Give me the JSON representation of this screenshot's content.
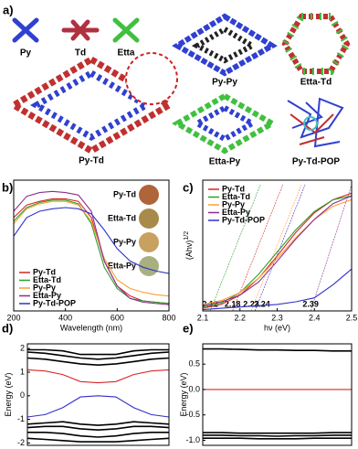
{
  "panel_a": {
    "label": "a)",
    "monomers": [
      "Py",
      "Td",
      "Etta"
    ],
    "frameworks": [
      "Py-Td",
      "Py-Py",
      "Etta-Td",
      "Etta-Py",
      "Py-Td-POP"
    ]
  },
  "chart_data": [
    {
      "type": "line",
      "label": "b)",
      "xlabel": "Wavelength (nm)",
      "xlim": [
        200,
        800
      ],
      "xticks": [
        200,
        400,
        600,
        800
      ],
      "ylim": [
        0,
        1.05
      ],
      "legend": "lower left",
      "x": [
        200,
        250,
        300,
        350,
        400,
        450,
        500,
        550,
        600,
        650,
        700,
        750,
        800
      ],
      "series": [
        {
          "name": "Py-Td",
          "color": "#d62728",
          "values": [
            0.75,
            0.85,
            0.88,
            0.9,
            0.9,
            0.88,
            0.75,
            0.4,
            0.2,
            0.12,
            0.08,
            0.07,
            0.06
          ]
        },
        {
          "name": "Etta-Td",
          "color": "#2ca02c",
          "values": [
            0.72,
            0.83,
            0.87,
            0.89,
            0.89,
            0.86,
            0.7,
            0.35,
            0.18,
            0.1,
            0.08,
            0.07,
            0.06
          ]
        },
        {
          "name": "Py-Py",
          "color": "#ff9f2f",
          "values": [
            0.7,
            0.82,
            0.86,
            0.88,
            0.88,
            0.85,
            0.72,
            0.42,
            0.25,
            0.18,
            0.15,
            0.13,
            0.12
          ]
        },
        {
          "name": "Etta-Py",
          "color": "#8b2f8b",
          "values": [
            0.8,
            0.92,
            0.95,
            0.96,
            0.95,
            0.93,
            0.8,
            0.4,
            0.2,
            0.1,
            0.07,
            0.06,
            0.05
          ]
        },
        {
          "name": "Py-Td-POP",
          "color": "#3030c8",
          "values": [
            0.6,
            0.75,
            0.8,
            0.82,
            0.83,
            0.82,
            0.78,
            0.65,
            0.5,
            0.4,
            0.35,
            0.32,
            0.3
          ]
        }
      ],
      "inset_labels": [
        "Py-Td",
        "Etta-Td",
        "Py-Py",
        "Etta-Py"
      ],
      "inset_colors": [
        "#b0643a",
        "#a88a4a",
        "#c8a060",
        "#a8b080"
      ],
      "inset_label_colors": [
        "#d62728",
        "#2ca02c",
        "#ff9f2f",
        "#8b2f8b"
      ]
    },
    {
      "type": "line",
      "label": "c)",
      "xlabel": "hν (eV)",
      "ylabel": "(Ahν)",
      "ylabel_sup": "1/2",
      "xlim": [
        2.1,
        2.5
      ],
      "xticks": [
        2.1,
        2.2,
        2.3,
        2.4,
        2.5
      ],
      "ylim": [
        0,
        1
      ],
      "legend": "upper left",
      "x": [
        2.1,
        2.15,
        2.2,
        2.25,
        2.3,
        2.35,
        2.4,
        2.45,
        2.5
      ],
      "series": [
        {
          "name": "Py-Td",
          "color": "#d62728",
          "values": [
            0.02,
            0.05,
            0.12,
            0.25,
            0.42,
            0.6,
            0.75,
            0.85,
            0.9
          ]
        },
        {
          "name": "Etta-Td",
          "color": "#2ca02c",
          "values": [
            0.03,
            0.06,
            0.14,
            0.28,
            0.45,
            0.62,
            0.76,
            0.85,
            0.88
          ]
        },
        {
          "name": "Py-Py",
          "color": "#ff9f2f",
          "values": [
            0.05,
            0.08,
            0.14,
            0.25,
            0.4,
            0.56,
            0.7,
            0.8,
            0.85
          ]
        },
        {
          "name": "Etta-Py",
          "color": "#8b2f8b",
          "values": [
            0.04,
            0.07,
            0.12,
            0.22,
            0.38,
            0.55,
            0.7,
            0.82,
            0.88
          ]
        },
        {
          "name": "Py-Td-POP",
          "color": "#3030c8",
          "values": [
            0.01,
            0.02,
            0.03,
            0.04,
            0.05,
            0.07,
            0.1,
            0.2,
            0.32
          ]
        }
      ],
      "band_gaps": [
        2.12,
        2.18,
        2.23,
        2.24,
        2.39
      ],
      "band_gap_colors": [
        "#2ca02c",
        "#d62728",
        "#ff9f2f",
        "#3030c8",
        "#8b2f8b"
      ]
    },
    {
      "type": "line",
      "label": "d)",
      "ylabel": "Energy (eV)",
      "xlim": [
        0,
        8
      ],
      "ylim": [
        -2.1,
        2.2
      ],
      "yticks": [
        -2,
        -1,
        0,
        1,
        2
      ],
      "x": [
        0,
        1,
        2,
        3,
        4,
        5,
        6,
        7,
        8
      ],
      "series": [
        {
          "color": "#000000",
          "values": [
            1.95,
            1.95,
            1.9,
            1.75,
            1.75,
            1.75,
            1.9,
            1.95,
            1.95
          ]
        },
        {
          "color": "#000000",
          "values": [
            1.85,
            1.8,
            1.7,
            1.6,
            1.55,
            1.6,
            1.7,
            1.8,
            1.85
          ]
        },
        {
          "color": "#000000",
          "values": [
            1.6,
            1.55,
            1.45,
            1.35,
            1.3,
            1.35,
            1.45,
            1.55,
            1.6
          ]
        },
        {
          "color": "#d62728",
          "values": [
            1.1,
            1.05,
            0.9,
            0.6,
            0.55,
            0.6,
            0.9,
            1.05,
            1.1
          ]
        },
        {
          "color": "#3030c8",
          "values": [
            -0.9,
            -0.8,
            -0.5,
            -0.05,
            0.0,
            -0.05,
            -0.5,
            -0.8,
            -0.9
          ]
        },
        {
          "color": "#000000",
          "values": [
            -1.2,
            -1.15,
            -1.1,
            -1.2,
            -1.25,
            -1.2,
            -1.1,
            -1.15,
            -1.2
          ]
        },
        {
          "color": "#000000",
          "values": [
            -1.35,
            -1.3,
            -1.3,
            -1.4,
            -1.45,
            -1.4,
            -1.3,
            -1.3,
            -1.35
          ]
        },
        {
          "color": "#000000",
          "values": [
            -1.55,
            -1.55,
            -1.6,
            -1.7,
            -1.75,
            -1.7,
            -1.6,
            -1.55,
            -1.55
          ]
        },
        {
          "color": "#000000",
          "values": [
            -1.8,
            -1.85,
            -1.9,
            -1.95,
            -1.95,
            -1.95,
            -1.9,
            -1.85,
            -1.8
          ]
        }
      ]
    },
    {
      "type": "line",
      "label": "e)",
      "ylabel": "Energy (eV)",
      "xlim": [
        0,
        8
      ],
      "ylim": [
        -1.1,
        0.9
      ],
      "yticks": [
        {
          "value": -1.0,
          "label": "-1.0"
        },
        -0.5,
        {
          "value": 0.0,
          "label": "0.0"
        },
        0.5
      ],
      "x": [
        0,
        1,
        2,
        3,
        4,
        5,
        6,
        7,
        8
      ],
      "series": [
        {
          "color": "#000000",
          "values": [
            0.8,
            0.8,
            0.79,
            0.78,
            0.78,
            0.77,
            0.77,
            0.76,
            0.76
          ]
        },
        {
          "color": "#d62728",
          "values": [
            0.0,
            0.0,
            0.0,
            0.0,
            0.0,
            0.0,
            0.0,
            0.0,
            0.0
          ]
        },
        {
          "color": "#000000",
          "values": [
            -0.85,
            -0.85,
            -0.86,
            -0.86,
            -0.86,
            -0.86,
            -0.86,
            -0.85,
            -0.85
          ]
        },
        {
          "color": "#000000",
          "values": [
            -0.9,
            -0.9,
            -0.91,
            -0.91,
            -0.92,
            -0.91,
            -0.91,
            -0.9,
            -0.9
          ]
        },
        {
          "color": "#000000",
          "values": [
            -0.96,
            -0.96,
            -0.96,
            -0.97,
            -0.97,
            -0.97,
            -0.96,
            -0.96,
            -0.96
          ]
        }
      ]
    }
  ]
}
